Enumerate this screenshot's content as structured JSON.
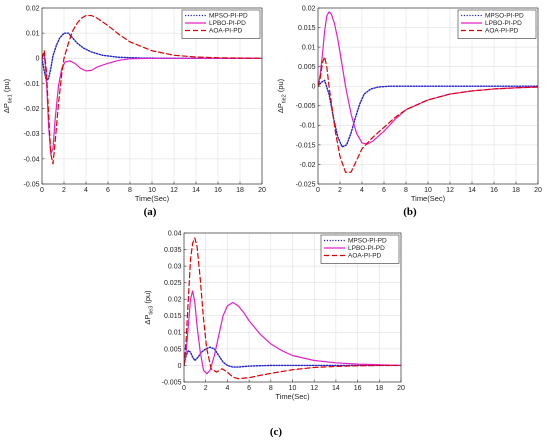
{
  "chart_data": [
    {
      "type": "line",
      "panel": "(a)",
      "caption": "(a)",
      "xlabel": "Time(Sec)",
      "ylabel": "ΔP",
      "ylabel_sub": "tie1",
      "ylabel_unit": "(pu)",
      "xlim": [
        0,
        20
      ],
      "ylim": [
        -0.05,
        0.02
      ],
      "xticks": [
        0,
        2,
        4,
        6,
        8,
        10,
        12,
        14,
        16,
        18,
        20
      ],
      "yticks": [
        0.02,
        0.01,
        0,
        -0.01,
        -0.02,
        -0.03,
        -0.04,
        -0.05
      ],
      "ytick_labels": [
        "0.02",
        "0.01",
        "0",
        "-0.01",
        "-0.02",
        "-0.03",
        "-0.04",
        "-0.05"
      ],
      "grid": true,
      "legend_position": "top-right",
      "series": [
        {
          "name": "MPSO-PI-PD",
          "color": "#1f1fcc",
          "dash": "dotted",
          "x": [
            0,
            0.2,
            0.4,
            0.6,
            0.8,
            1.0,
            1.3,
            1.6,
            2.0,
            2.4,
            2.8,
            3.2,
            3.8,
            4.5,
            5.5,
            7,
            9,
            12,
            16,
            20
          ],
          "y": [
            0,
            -0.005,
            -0.009,
            -0.008,
            -0.004,
            0.001,
            0.005,
            0.008,
            0.01,
            0.01,
            0.008,
            0.006,
            0.004,
            0.0025,
            0.0012,
            0.0004,
            0.0001,
            0,
            0,
            0
          ]
        },
        {
          "name": "LPBO-PI-PD",
          "color": "#e020c8",
          "dash": "solid",
          "x": [
            0,
            0.2,
            0.4,
            0.6,
            0.8,
            1.0,
            1.2,
            1.5,
            1.8,
            2.1,
            2.5,
            3.0,
            3.5,
            4.0,
            4.5,
            5.0,
            6,
            7,
            8,
            10,
            13,
            20
          ],
          "y": [
            0,
            0.002,
            -0.008,
            -0.027,
            -0.038,
            -0.036,
            -0.024,
            -0.011,
            -0.004,
            -0.0015,
            -0.001,
            -0.002,
            -0.004,
            -0.005,
            -0.0048,
            -0.0035,
            -0.002,
            -0.0008,
            -0.0002,
            0,
            0,
            0
          ]
        },
        {
          "name": "AOA-PI-PD",
          "color": "#e00000",
          "dash": "dashed",
          "x": [
            0,
            0.2,
            0.4,
            0.6,
            0.8,
            1.0,
            1.2,
            1.5,
            1.8,
            2.0,
            2.4,
            2.8,
            3.2,
            3.6,
            4.0,
            4.5,
            5.0,
            6,
            7,
            8,
            10,
            12,
            14,
            16,
            20
          ],
          "y": [
            0,
            0.003,
            -0.005,
            -0.022,
            -0.038,
            -0.042,
            -0.033,
            -0.018,
            -0.006,
            0.0,
            0.006,
            0.011,
            0.014,
            0.016,
            0.017,
            0.017,
            0.016,
            0.013,
            0.0095,
            0.0065,
            0.003,
            0.0012,
            0.0005,
            0.0002,
            0
          ]
        }
      ]
    },
    {
      "type": "line",
      "panel": "(b)",
      "caption": "(b)",
      "xlabel": "Time(Sec)",
      "ylabel": "ΔP",
      "ylabel_sub": "tie2",
      "ylabel_unit": "(pu)",
      "xlim": [
        0,
        20
      ],
      "ylim": [
        -0.025,
        0.02
      ],
      "xticks": [
        0,
        2,
        4,
        6,
        8,
        10,
        12,
        14,
        16,
        18,
        20
      ],
      "yticks": [
        0.02,
        0.015,
        0.01,
        0.005,
        0,
        -0.005,
        -0.01,
        -0.015,
        -0.02,
        -0.025
      ],
      "ytick_labels": [
        "0.02",
        "0.015",
        "0.01",
        "0.005",
        "0",
        "-0.005",
        "-0.01",
        "-0.015",
        "-0.02",
        "-0.025"
      ],
      "grid": true,
      "legend_position": "top-right",
      "series": [
        {
          "name": "MPSO-PI-PD",
          "color": "#1f1fcc",
          "dash": "dotted",
          "x": [
            0,
            0.3,
            0.6,
            1.0,
            1.4,
            1.8,
            2.2,
            2.6,
            3.0,
            3.4,
            3.8,
            4.2,
            4.8,
            5.5,
            6.5,
            8,
            10,
            14,
            20
          ],
          "y": [
            0,
            0.001,
            0.0015,
            -0.002,
            -0.008,
            -0.013,
            -0.0155,
            -0.015,
            -0.012,
            -0.008,
            -0.0045,
            -0.002,
            -0.0007,
            -0.0002,
            0,
            0,
            0,
            0,
            0
          ]
        },
        {
          "name": "LPBO-PI-PD",
          "color": "#e020c8",
          "dash": "solid",
          "x": [
            0,
            0.2,
            0.4,
            0.6,
            0.8,
            1.0,
            1.2,
            1.5,
            1.8,
            2.1,
            2.5,
            3.0,
            3.5,
            4.0,
            4.5,
            5.0,
            6,
            7,
            8,
            10,
            12,
            14,
            16,
            18,
            20
          ],
          "y": [
            0,
            0.003,
            0.008,
            0.014,
            0.018,
            0.019,
            0.0185,
            0.016,
            0.012,
            0.007,
            0.0,
            -0.007,
            -0.012,
            -0.0145,
            -0.0148,
            -0.014,
            -0.0115,
            -0.0085,
            -0.006,
            -0.0035,
            -0.002,
            -0.0012,
            -0.0007,
            -0.0004,
            -0.0002
          ]
        },
        {
          "name": "AOA-PI-PD",
          "color": "#e00000",
          "dash": "dashed",
          "x": [
            0,
            0.2,
            0.4,
            0.6,
            0.8,
            1.0,
            1.3,
            1.6,
            2.0,
            2.5,
            3.0,
            3.5,
            4.0,
            4.5,
            5.0,
            6,
            7,
            8,
            10,
            12,
            14,
            16,
            18,
            20
          ],
          "y": [
            0,
            0.002,
            0.006,
            0.0075,
            0.005,
            0.0,
            -0.006,
            -0.012,
            -0.018,
            -0.022,
            -0.022,
            -0.019,
            -0.016,
            -0.0145,
            -0.013,
            -0.0105,
            -0.008,
            -0.006,
            -0.0035,
            -0.002,
            -0.0012,
            -0.0007,
            -0.0004,
            -0.0002
          ]
        }
      ]
    },
    {
      "type": "line",
      "panel": "(c)",
      "caption": "(c)",
      "xlabel": "Time(Sec)",
      "ylabel": "ΔP",
      "ylabel_sub": "tie3",
      "ylabel_unit": "(pu)",
      "xlim": [
        0,
        20
      ],
      "ylim": [
        -0.005,
        0.04
      ],
      "xticks": [
        0,
        2,
        4,
        6,
        8,
        10,
        12,
        14,
        16,
        18,
        20
      ],
      "yticks": [
        0.04,
        0.035,
        0.03,
        0.025,
        0.02,
        0.015,
        0.01,
        0.005,
        0,
        -0.005
      ],
      "ytick_labels": [
        "0.04",
        "0.035",
        "0.03",
        "0.025",
        "0.02",
        "0.015",
        "0.01",
        "0.005",
        "0",
        "-0.005"
      ],
      "grid": true,
      "legend_position": "top-right",
      "series": [
        {
          "name": "MPSO-PI-PD",
          "color": "#1f1fcc",
          "dash": "dotted",
          "x": [
            0,
            0.2,
            0.4,
            0.6,
            0.8,
            1.0,
            1.3,
            1.6,
            2.0,
            2.4,
            2.8,
            3.2,
            3.6,
            4.0,
            4.5,
            5.0,
            6,
            8,
            10,
            14,
            20
          ],
          "y": [
            0,
            0.003,
            0.0045,
            0.004,
            0.0025,
            0.0015,
            0.0025,
            0.004,
            0.005,
            0.0055,
            0.005,
            0.003,
            0.001,
            0.0,
            -0.0005,
            -0.0005,
            -0.0002,
            0,
            0,
            0,
            0
          ]
        },
        {
          "name": "LPBO-PI-PD",
          "color": "#e020c8",
          "dash": "solid",
          "x": [
            0,
            0.2,
            0.4,
            0.6,
            0.8,
            1.0,
            1.2,
            1.5,
            1.8,
            2.1,
            2.4,
            2.8,
            3.2,
            3.6,
            4.0,
            4.5,
            5.0,
            5.5,
            6,
            7,
            8,
            9,
            10,
            12,
            14,
            16,
            18,
            20
          ],
          "y": [
            0,
            0.004,
            0.012,
            0.02,
            0.0225,
            0.019,
            0.012,
            0.004,
            -0.0015,
            -0.0025,
            -0.0015,
            0.003,
            0.009,
            0.015,
            0.018,
            0.019,
            0.018,
            0.016,
            0.0135,
            0.0095,
            0.0065,
            0.0045,
            0.003,
            0.0015,
            0.0008,
            0.0004,
            0.0002,
            0
          ]
        },
        {
          "name": "AOA-PI-PD",
          "color": "#e00000",
          "dash": "dashed",
          "x": [
            0,
            0.2,
            0.4,
            0.6,
            0.8,
            1.0,
            1.2,
            1.5,
            1.8,
            2.1,
            2.5,
            3.0,
            3.5,
            4.0,
            4.5,
            5.0,
            6,
            7,
            8,
            10,
            12,
            14,
            16,
            18,
            20
          ],
          "y": [
            0,
            0.008,
            0.02,
            0.032,
            0.037,
            0.0385,
            0.036,
            0.026,
            0.014,
            0.005,
            -0.001,
            -0.002,
            -0.001,
            -0.002,
            -0.0035,
            -0.004,
            -0.0037,
            -0.003,
            -0.0024,
            -0.0013,
            -0.0006,
            -0.0003,
            -0.0001,
            0,
            0
          ]
        }
      ]
    }
  ]
}
